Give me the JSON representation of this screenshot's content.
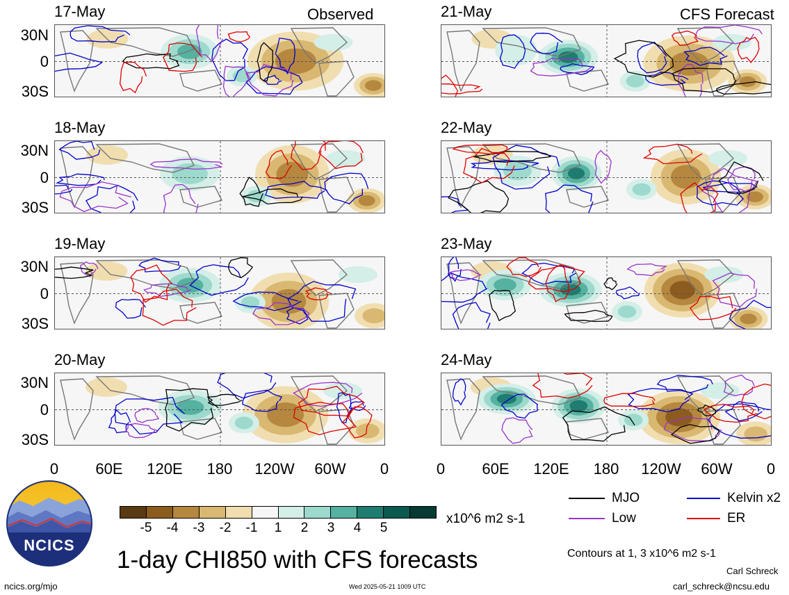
{
  "headers": {
    "observed": "Observed",
    "forecast": "CFS Forecast"
  },
  "panels": [
    {
      "date": "17-May",
      "column": "observed"
    },
    {
      "date": "18-May",
      "column": "observed"
    },
    {
      "date": "19-May",
      "column": "observed"
    },
    {
      "date": "20-May",
      "column": "observed"
    },
    {
      "date": "21-May",
      "column": "forecast"
    },
    {
      "date": "22-May",
      "column": "forecast"
    },
    {
      "date": "23-May",
      "column": "forecast"
    },
    {
      "date": "24-May",
      "column": "forecast"
    }
  ],
  "lat_labels": [
    "30N",
    "0",
    "30S"
  ],
  "lon_labels": [
    "0",
    "60E",
    "120E",
    "180",
    "120W",
    "60W",
    "0"
  ],
  "colorbar": {
    "colors": [
      "#5a3a12",
      "#8c5c1f",
      "#b5873f",
      "#d9b872",
      "#f1deb0",
      "#f6f6f6",
      "#d4eee8",
      "#9dd9cc",
      "#55b1a0",
      "#1e7d70",
      "#0b5a50",
      "#073a33"
    ],
    "labels": [
      "-5",
      "-4",
      "-3",
      "-2",
      "-1",
      "1",
      "2",
      "3",
      "4",
      "5"
    ],
    "units": "x10^6 m2 s-1"
  },
  "legend": {
    "items": [
      {
        "label": "MJO",
        "color": "#000000"
      },
      {
        "label": "Kelvin x2",
        "color": "#0000cc"
      },
      {
        "label": "Low",
        "color": "#9933cc"
      },
      {
        "label": "ER",
        "color": "#dd0000"
      }
    ],
    "contour_note": "Contours at 1, 3 x10^6 m2 s-1"
  },
  "title": "1-day CHI850 with CFS forecasts",
  "logo_text": "NCICS",
  "footer": {
    "url": "ncics.org/mjo",
    "timestamp": "Wed 2025-05-21 1009 UTC",
    "author": "Carl Schreck",
    "email": "carl_schreck@ncsu.edu"
  }
}
